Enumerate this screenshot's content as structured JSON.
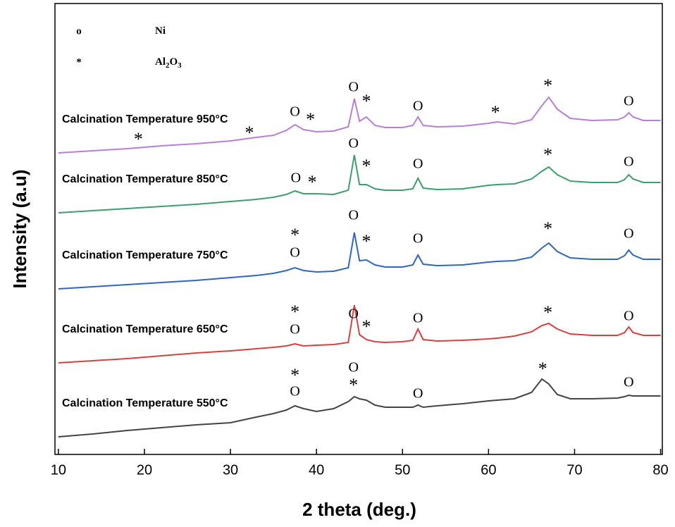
{
  "chart_data": {
    "type": "line",
    "xlabel": "2 theta (deg.)",
    "ylabel": "Intensity (a.u)",
    "xlim": [
      9.6,
      80.2
    ],
    "xticks": [
      10,
      20,
      30,
      40,
      50,
      60,
      70,
      80
    ],
    "ylim": [
      0,
      640
    ],
    "x": [
      10,
      14,
      18,
      22,
      26,
      30,
      33,
      35,
      36.5,
      37.5,
      38.5,
      40,
      42,
      43.7,
      44.4,
      45,
      45.8,
      46.8,
      48,
      50,
      51.2,
      51.8,
      52.4,
      54,
      57,
      60,
      61,
      63,
      65,
      66.2,
      67,
      68,
      69.5,
      72,
      75,
      75.8,
      76.3,
      76.8,
      78,
      80
    ],
    "legend": [
      {
        "symbol": "o",
        "label": "Ni"
      },
      {
        "symbol": "*",
        "label": "Al2O3"
      }
    ],
    "series": [
      {
        "name": "Calcination Temperature 950°C",
        "color": "#b77fd6",
        "values": [
          428,
          431,
          434,
          438,
          441,
          445,
          450,
          453,
          460,
          468,
          461,
          458,
          459,
          465,
          505,
          473,
          479,
          467,
          464,
          464,
          467,
          479,
          467,
          465,
          466,
          470,
          472,
          469,
          475,
          495,
          507,
          490,
          477,
          474,
          475,
          479,
          485,
          479,
          474,
          474
        ]
      },
      {
        "name": "Calcination Temperature 850°C",
        "color": "#3c9f6c",
        "values": [
          343,
          346,
          349,
          352,
          355,
          359,
          362,
          365,
          369,
          374,
          370,
          370,
          369,
          375,
          425,
          383,
          383,
          377,
          375,
          375,
          377,
          392,
          378,
          376,
          377,
          382,
          383,
          384,
          391,
          402,
          408,
          397,
          388,
          386,
          386,
          390,
          397,
          391,
          386,
          386
        ]
      },
      {
        "name": "Calcination Temperature 750°C",
        "color": "#2f66bf",
        "values": [
          235,
          238,
          241,
          244,
          247,
          251,
          254,
          257,
          261,
          265,
          261,
          259,
          260,
          265,
          315,
          275,
          276,
          269,
          266,
          266,
          269,
          283,
          270,
          268,
          269,
          273,
          274,
          275,
          280,
          293,
          300,
          288,
          279,
          277,
          277,
          282,
          290,
          283,
          277,
          277
        ]
      },
      {
        "name": "Calcination Temperature 650°C",
        "color": "#d9403f",
        "values": [
          130,
          133,
          136,
          140,
          144,
          147,
          150,
          152,
          154,
          157,
          154,
          155,
          156,
          159,
          212,
          170,
          163,
          160,
          159,
          160,
          162,
          178,
          163,
          161,
          162,
          164,
          165,
          168,
          174,
          183,
          186,
          178,
          171,
          169,
          169,
          173,
          181,
          173,
          169,
          169
        ]
      },
      {
        "name": "Calcination Temperature 550°C",
        "color": "#444444",
        "values": [
          25,
          29,
          34,
          38,
          42,
          45,
          53,
          58,
          63,
          69,
          65,
          61,
          65,
          75,
          82,
          79,
          77,
          70,
          67,
          67,
          67,
          70,
          67,
          69,
          72,
          76,
          77,
          79,
          88,
          107,
          100,
          85,
          79,
          79,
          80,
          82,
          84,
          83,
          83,
          83
        ]
      }
    ],
    "annotations": [
      {
        "text": "*",
        "x": 19.3,
        "y": 449
      },
      {
        "text": "*",
        "x": 32.2,
        "y": 458
      },
      {
        "text": "O",
        "x": 37.5,
        "y": 485
      },
      {
        "text": "*",
        "x": 39.3,
        "y": 477
      },
      {
        "text": "O",
        "x": 44.3,
        "y": 520
      },
      {
        "text": "*",
        "x": 45.8,
        "y": 503
      },
      {
        "text": "O",
        "x": 51.8,
        "y": 493
      },
      {
        "text": "*",
        "x": 60.8,
        "y": 487
      },
      {
        "text": "*",
        "x": 66.9,
        "y": 525
      },
      {
        "text": "O",
        "x": 76.3,
        "y": 500
      },
      {
        "text": "O",
        "x": 37.6,
        "y": 391
      },
      {
        "text": "*",
        "x": 39.5,
        "y": 388
      },
      {
        "text": "O",
        "x": 44.3,
        "y": 440
      },
      {
        "text": "*",
        "x": 45.8,
        "y": 411
      },
      {
        "text": "O",
        "x": 51.8,
        "y": 411
      },
      {
        "text": "*",
        "x": 66.9,
        "y": 427
      },
      {
        "text": "O",
        "x": 76.3,
        "y": 414
      },
      {
        "text": "*",
        "x": 37.5,
        "y": 313
      },
      {
        "text": "O",
        "x": 37.5,
        "y": 285
      },
      {
        "text": "O",
        "x": 44.3,
        "y": 338
      },
      {
        "text": "*",
        "x": 45.8,
        "y": 304
      },
      {
        "text": "O",
        "x": 51.8,
        "y": 305
      },
      {
        "text": "*",
        "x": 66.9,
        "y": 322
      },
      {
        "text": "O",
        "x": 76.3,
        "y": 312
      },
      {
        "text": "*",
        "x": 37.5,
        "y": 204
      },
      {
        "text": "O",
        "x": 37.5,
        "y": 176
      },
      {
        "text": "O",
        "x": 44.3,
        "y": 198
      },
      {
        "text": "*",
        "x": 45.8,
        "y": 183
      },
      {
        "text": "O",
        "x": 51.8,
        "y": 192
      },
      {
        "text": "*",
        "x": 66.9,
        "y": 203
      },
      {
        "text": "O",
        "x": 76.3,
        "y": 195
      },
      {
        "text": "*",
        "x": 37.5,
        "y": 114
      },
      {
        "text": "O",
        "x": 37.5,
        "y": 88
      },
      {
        "text": "O",
        "x": 44.3,
        "y": 122
      },
      {
        "text": "*",
        "x": 44.3,
        "y": 100
      },
      {
        "text": "O",
        "x": 51.8,
        "y": 85
      },
      {
        "text": "*",
        "x": 66.3,
        "y": 123
      },
      {
        "text": "O",
        "x": 76.3,
        "y": 101
      }
    ]
  }
}
